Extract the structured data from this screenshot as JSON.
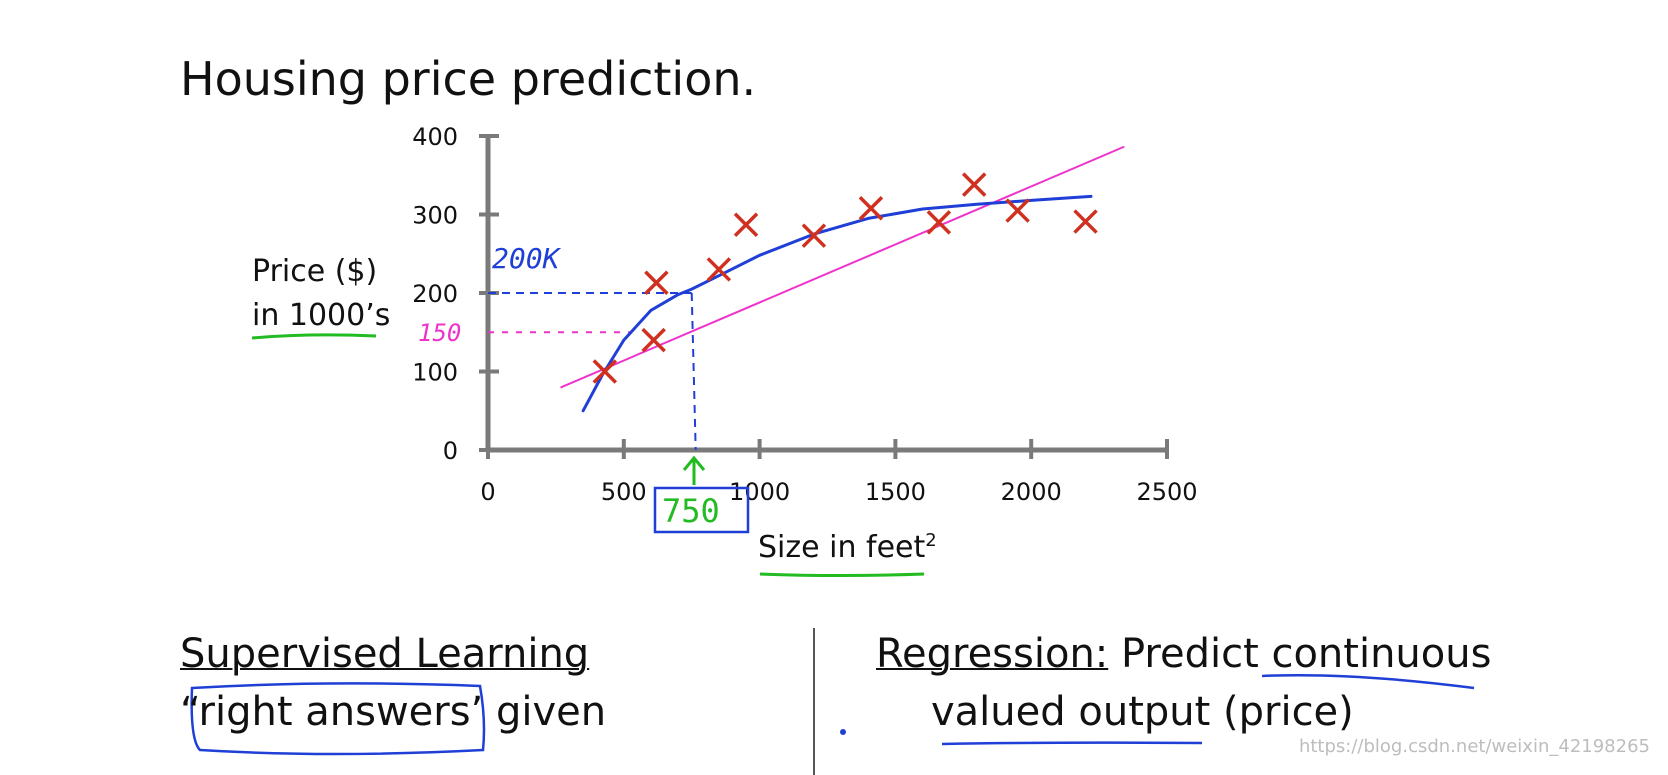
{
  "title": "Housing price prediction.",
  "chart_data": {
    "type": "scatter",
    "title": "Housing price prediction.",
    "xlabel": "Size in feet",
    "xlabel_superscript": "2",
    "ylabel_line1": "Price ($)",
    "ylabel_line2": "in 1000’s",
    "xlim": [
      0,
      2500
    ],
    "ylim": [
      0,
      400
    ],
    "xticks": [
      0,
      500,
      1000,
      1500,
      2000,
      2500
    ],
    "yticks": [
      0,
      100,
      200,
      300,
      400
    ],
    "points": [
      {
        "x": 430,
        "y": 100
      },
      {
        "x": 610,
        "y": 140
      },
      {
        "x": 620,
        "y": 213
      },
      {
        "x": 850,
        "y": 230
      },
      {
        "x": 950,
        "y": 287
      },
      {
        "x": 1200,
        "y": 273
      },
      {
        "x": 1410,
        "y": 308
      },
      {
        "x": 1660,
        "y": 290
      },
      {
        "x": 1790,
        "y": 338
      },
      {
        "x": 1950,
        "y": 305
      },
      {
        "x": 2200,
        "y": 291
      }
    ],
    "series": [
      {
        "name": "straight-line fit",
        "color": "#ee33cc",
        "x": [
          270,
          2340
        ],
        "y": [
          80,
          386
        ]
      },
      {
        "name": "quadratic fit",
        "color": "#1f3fd6",
        "x": [
          350,
          420,
          500,
          600,
          700,
          750,
          850,
          1000,
          1200,
          1400,
          1600,
          1800,
          2000,
          2220
        ],
        "y": [
          50,
          95,
          140,
          178,
          198,
          205,
          222,
          248,
          275,
          295,
          307,
          313,
          318,
          323
        ]
      }
    ],
    "annotations": {
      "input_size": "750",
      "predicted_quadratic": "200K",
      "predicted_linear": "150",
      "input_x_value": 750,
      "quadratic_y_value": 200,
      "linear_y_value": 150
    }
  },
  "bottom_left": {
    "heading": "Supervised Learning",
    "line2_open_quote": "“",
    "line2_quoted": "right answers’",
    "line2_rest": " given"
  },
  "bottom_right": {
    "heading": "Regression:",
    "line1_rest": " Predict ",
    "line1_underlined": "continuous",
    "line2_underlined": "valued output",
    "line2_rest": " (price)"
  },
  "watermark": "https://blog.csdn.net/weixin_42198265",
  "colors": {
    "axis": "#7a7a7a",
    "marker": "#d03020",
    "linear": "#ee33cc",
    "quadratic": "#1f3fd6",
    "green": "#22bb22"
  }
}
